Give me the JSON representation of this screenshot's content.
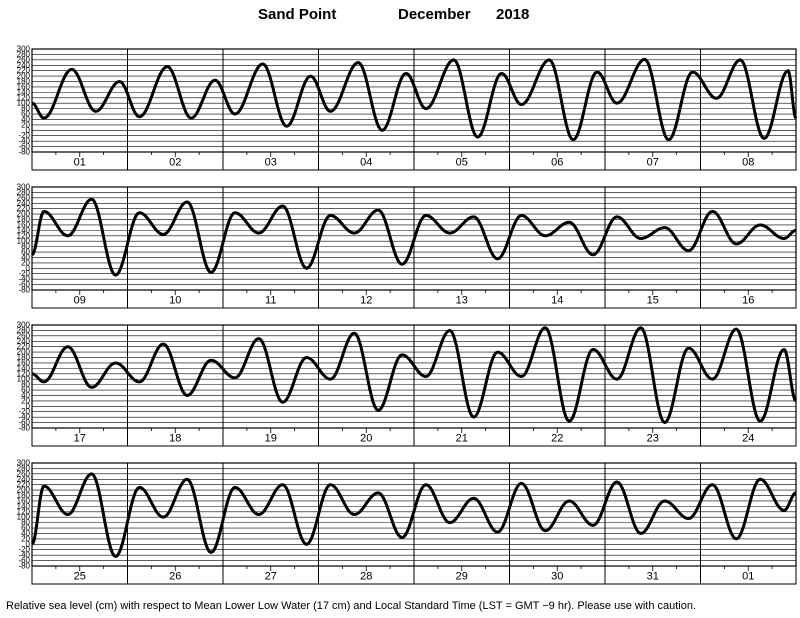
{
  "title": {
    "station": "Sand Point",
    "month": "December",
    "year": "2018"
  },
  "footnote": "Relative sea level (cm) with respect to Mean Lower Low Water (17 cm) and Local Standard Time (LST = GMT −9 hr). Please use with caution.",
  "chart_data": [
    {
      "type": "line",
      "panel": 1,
      "y_ticks": [
        300,
        280,
        260,
        240,
        220,
        200,
        180,
        160,
        140,
        120,
        100,
        80,
        60,
        40,
        20,
        0,
        -20,
        -40,
        -60,
        -80
      ],
      "ylim": [
        -80,
        300
      ],
      "x_labels": [
        "01",
        "02",
        "03",
        "04",
        "05",
        "06",
        "07",
        "08"
      ],
      "series": [
        {
          "name": "",
          "x_hours": [
            0,
            3,
            10,
            16,
            22,
            27,
            34,
            40,
            46,
            51,
            58,
            64,
            70,
            75,
            82,
            88,
            94,
            99,
            106,
            112,
            118,
            123,
            130,
            136,
            142,
            147,
            154,
            160,
            166,
            172,
            178,
            184,
            190,
            192
          ],
          "values": [
            100,
            45,
            225,
            70,
            180,
            50,
            235,
            45,
            185,
            60,
            245,
            15,
            200,
            70,
            250,
            0,
            210,
            80,
            260,
            -25,
            210,
            95,
            260,
            -35,
            215,
            100,
            262,
            -35,
            215,
            118,
            260,
            -30,
            220,
            45
          ]
        }
      ]
    },
    {
      "type": "line",
      "panel": 2,
      "y_ticks": [
        300,
        280,
        260,
        240,
        220,
        200,
        180,
        160,
        140,
        120,
        100,
        80,
        60,
        40,
        20,
        0,
        -20,
        -40,
        -60,
        -80
      ],
      "ylim": [
        -80,
        300
      ],
      "x_labels": [
        "09",
        "10",
        "11",
        "12",
        "13",
        "14",
        "15",
        "16"
      ],
      "series": [
        {
          "name": "",
          "x_hours": [
            0,
            3,
            9,
            15,
            21,
            27,
            33,
            39,
            45,
            51,
            57,
            63,
            69,
            75,
            81,
            87,
            93,
            99,
            105,
            111,
            117,
            123,
            129,
            135,
            141,
            147,
            153,
            159,
            165,
            171,
            177,
            183,
            189,
            192
          ],
          "values": [
            50,
            210,
            120,
            255,
            -25,
            205,
            125,
            245,
            -15,
            205,
            130,
            230,
            0,
            195,
            130,
            215,
            15,
            195,
            130,
            190,
            35,
            195,
            120,
            170,
            50,
            190,
            110,
            150,
            65,
            210,
            90,
            160,
            110,
            140
          ]
        }
      ]
    },
    {
      "type": "line",
      "panel": 3,
      "y_ticks": [
        300,
        280,
        260,
        240,
        220,
        200,
        180,
        160,
        140,
        120,
        100,
        80,
        60,
        40,
        20,
        0,
        -20,
        -40,
        -60,
        -80
      ],
      "ylim": [
        -80,
        300
      ],
      "x_labels": [
        "17",
        "18",
        "19",
        "20",
        "21",
        "22",
        "23",
        "24"
      ],
      "series": [
        {
          "name": "",
          "x_hours": [
            0,
            3,
            9,
            15,
            21,
            27,
            33,
            39,
            45,
            51,
            57,
            63,
            69,
            75,
            81,
            87,
            93,
            99,
            105,
            111,
            117,
            123,
            129,
            135,
            141,
            147,
            153,
            159,
            165,
            171,
            177,
            183,
            189,
            192
          ],
          "values": [
            120,
            90,
            220,
            70,
            160,
            90,
            230,
            40,
            170,
            105,
            250,
            15,
            180,
            100,
            270,
            -15,
            190,
            110,
            280,
            -40,
            200,
            110,
            290,
            -55,
            210,
            100,
            290,
            -60,
            215,
            100,
            285,
            -55,
            210,
            20
          ]
        }
      ]
    },
    {
      "type": "line",
      "panel": 4,
      "y_ticks": [
        300,
        280,
        260,
        240,
        220,
        200,
        180,
        160,
        140,
        120,
        100,
        80,
        60,
        40,
        20,
        0,
        -20,
        -40,
        -60,
        -80
      ],
      "ylim": [
        -80,
        300
      ],
      "x_labels": [
        "25",
        "26",
        "27",
        "28",
        "29",
        "30",
        "31",
        "01"
      ],
      "series": [
        {
          "name": "",
          "x_hours": [
            0,
            3,
            9,
            15,
            21,
            27,
            33,
            39,
            45,
            51,
            57,
            63,
            69,
            75,
            81,
            87,
            93,
            99,
            105,
            111,
            117,
            123,
            129,
            135,
            141,
            147,
            153,
            159,
            165,
            171,
            177,
            183,
            189,
            192
          ],
          "values": [
            0,
            215,
            110,
            260,
            -45,
            210,
            100,
            240,
            -30,
            210,
            110,
            220,
            0,
            220,
            110,
            190,
            25,
            220,
            80,
            170,
            45,
            225,
            50,
            160,
            70,
            230,
            40,
            160,
            95,
            220,
            20,
            240,
            125,
            190
          ]
        }
      ]
    }
  ]
}
